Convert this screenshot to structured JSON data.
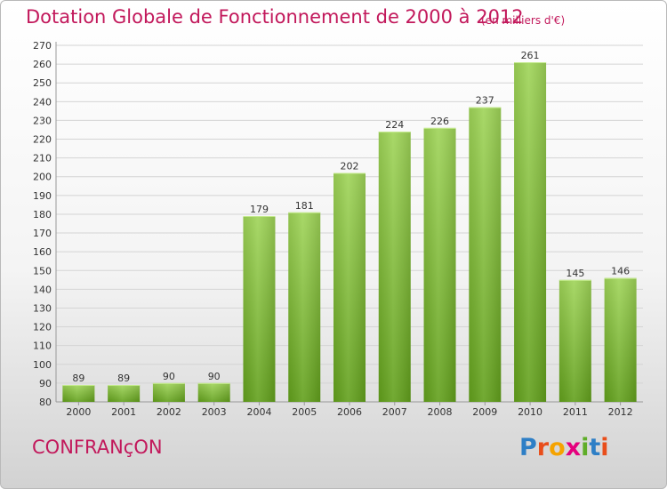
{
  "title": "Dotation Globale de Fonctionnement de 2000 à 2012",
  "unit_note": "(en milliers d'€)",
  "commune": "CONFRANçON",
  "logo": {
    "text": "Proxiti",
    "letters": [
      {
        "ch": "P",
        "color": "#2e7fc6"
      },
      {
        "ch": "r",
        "color": "#e94e1b"
      },
      {
        "ch": "o",
        "color": "#f5a300"
      },
      {
        "ch": "x",
        "color": "#e5007d"
      },
      {
        "ch": "i",
        "color": "#5fad28"
      },
      {
        "ch": "t",
        "color": "#2e7fc6"
      },
      {
        "ch": "i",
        "color": "#e94e1b"
      }
    ]
  },
  "colors": {
    "title": "#c2185b",
    "bar_top": "#9fd458",
    "bar_bottom": "#62a01c",
    "grid": "#d4d4d4",
    "axis_text": "#333333"
  },
  "chart_data": {
    "type": "bar",
    "title": "Dotation Globale de Fonctionnement de 2000 à 2012",
    "categories": [
      "2000",
      "2001",
      "2002",
      "2003",
      "2004",
      "2005",
      "2006",
      "2007",
      "2008",
      "2009",
      "2010",
      "2011",
      "2012"
    ],
    "values": [
      89,
      89,
      90,
      90,
      179,
      181,
      202,
      224,
      226,
      237,
      261,
      145,
      146
    ],
    "ylim": [
      80,
      270
    ],
    "yticks": [
      80,
      90,
      100,
      110,
      120,
      130,
      140,
      150,
      160,
      170,
      180,
      190,
      200,
      210,
      220,
      230,
      240,
      250,
      260,
      270
    ],
    "grid": true,
    "xlabel": "",
    "ylabel": ""
  }
}
